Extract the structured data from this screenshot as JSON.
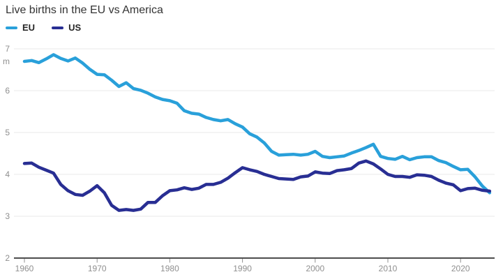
{
  "page": {
    "title": "Live births in the EU vs America"
  },
  "colors": {
    "eu_line": "#29a0da",
    "us_line": "#282e93",
    "gridline": "#e8e8e8",
    "axis_line": "#4d4d4d",
    "axis_text": "#8f8f8f",
    "title_text": "#333333"
  },
  "chart_data": {
    "type": "line",
    "title": "Live births in the EU vs America",
    "unit_label": "m",
    "xlabel": "",
    "ylabel": "",
    "ylim": [
      2,
      7
    ],
    "yticks": [
      2,
      3,
      4,
      5,
      6,
      7
    ],
    "xticks": [
      1960,
      1970,
      1980,
      1990,
      2000,
      2010,
      2020
    ],
    "grid": "horizontal",
    "legend_position": "top-left",
    "x": [
      1960,
      1961,
      1962,
      1963,
      1964,
      1965,
      1966,
      1967,
      1968,
      1969,
      1970,
      1971,
      1972,
      1973,
      1974,
      1975,
      1976,
      1977,
      1978,
      1979,
      1980,
      1981,
      1982,
      1983,
      1984,
      1985,
      1986,
      1987,
      1988,
      1989,
      1990,
      1991,
      1992,
      1993,
      1994,
      1995,
      1996,
      1997,
      1998,
      1999,
      2000,
      2001,
      2002,
      2003,
      2004,
      2005,
      2006,
      2007,
      2008,
      2009,
      2010,
      2011,
      2012,
      2013,
      2014,
      2015,
      2016,
      2017,
      2018,
      2019,
      2020,
      2021,
      2022,
      2023,
      2024
    ],
    "series": [
      {
        "name": "EU",
        "color": "#29a0da",
        "values": [
          6.7,
          6.72,
          6.67,
          6.76,
          6.86,
          6.77,
          6.71,
          6.78,
          6.66,
          6.51,
          6.39,
          6.38,
          6.25,
          6.1,
          6.19,
          6.05,
          6.01,
          5.94,
          5.85,
          5.79,
          5.76,
          5.7,
          5.52,
          5.46,
          5.44,
          5.36,
          5.31,
          5.28,
          5.31,
          5.21,
          5.13,
          4.97,
          4.89,
          4.75,
          4.55,
          4.46,
          4.47,
          4.48,
          4.46,
          4.48,
          4.55,
          4.43,
          4.4,
          4.42,
          4.44,
          4.51,
          4.57,
          4.64,
          4.72,
          4.43,
          4.38,
          4.36,
          4.43,
          4.35,
          4.4,
          4.42,
          4.42,
          4.33,
          4.28,
          4.19,
          4.11,
          4.12,
          3.94,
          3.72,
          3.56
        ]
      },
      {
        "name": "US",
        "color": "#282e93",
        "values": [
          4.26,
          4.27,
          4.17,
          4.1,
          4.03,
          3.76,
          3.61,
          3.52,
          3.5,
          3.6,
          3.73,
          3.56,
          3.26,
          3.14,
          3.16,
          3.14,
          3.17,
          3.33,
          3.33,
          3.49,
          3.61,
          3.63,
          3.68,
          3.64,
          3.67,
          3.76,
          3.76,
          3.81,
          3.91,
          4.04,
          4.16,
          4.11,
          4.07,
          4.0,
          3.95,
          3.9,
          3.89,
          3.88,
          3.94,
          3.96,
          4.06,
          4.03,
          4.02,
          4.09,
          4.11,
          4.14,
          4.27,
          4.32,
          4.25,
          4.13,
          4.0,
          3.95,
          3.95,
          3.93,
          3.99,
          3.98,
          3.95,
          3.86,
          3.79,
          3.75,
          3.61,
          3.66,
          3.67,
          3.62,
          3.6
        ]
      }
    ]
  }
}
